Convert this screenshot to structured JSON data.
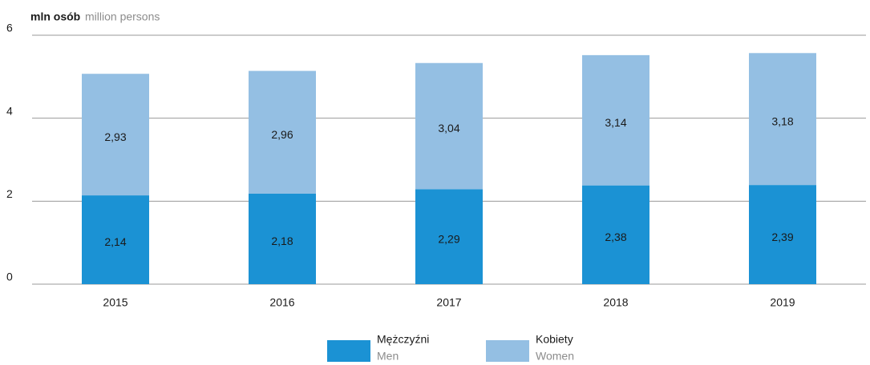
{
  "chart_data": {
    "type": "bar",
    "stacked": true,
    "y_label": "mln osób",
    "y_label_en": "million persons",
    "categories": [
      "2015",
      "2016",
      "2017",
      "2018",
      "2019"
    ],
    "series": [
      {
        "name": "Mężczyźni",
        "name_en": "Men",
        "color": "#1b92d4",
        "values": [
          2.14,
          2.18,
          2.29,
          2.38,
          2.39
        ],
        "value_labels": [
          "2,14",
          "2,18",
          "2,29",
          "2,38",
          "2,39"
        ]
      },
      {
        "name": "Kobiety",
        "name_en": "Women",
        "color": "#94bfe3",
        "values": [
          2.93,
          2.96,
          3.04,
          3.14,
          3.18
        ],
        "value_labels": [
          "2,93",
          "2,96",
          "3,04",
          "3,14",
          "3,18"
        ]
      }
    ],
    "ylim": [
      0,
      6
    ],
    "yticks": [
      0,
      2,
      4,
      6
    ],
    "grid": true
  }
}
